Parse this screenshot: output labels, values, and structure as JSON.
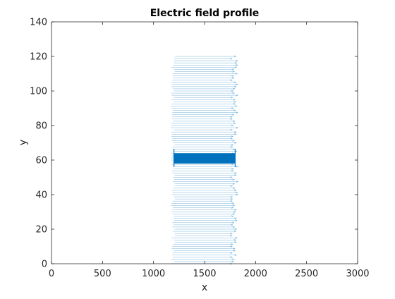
{
  "chart_data": {
    "type": "quiver",
    "title": "Electric field profile",
    "xlabel": "x",
    "ylabel": "y",
    "xlim": [
      0,
      3000
    ],
    "ylim": [
      0,
      140
    ],
    "xticks": [
      0,
      500,
      1000,
      1500,
      2000,
      2500,
      3000
    ],
    "yticks": [
      0,
      20,
      40,
      60,
      80,
      100,
      120,
      140
    ],
    "grid": false,
    "box": true,
    "colors": {
      "series": "#0072BD",
      "axis": "#262626"
    },
    "series": [
      {
        "kind": "quiver_arrows",
        "x_start": 1200,
        "x_end": 1800,
        "x_end_spread": 60,
        "y_from": 0,
        "y_to": 120,
        "y_step": 1.25
      },
      {
        "kind": "dense_band",
        "x_range": [
          1200,
          1800
        ],
        "y_range": [
          58,
          64
        ]
      }
    ]
  }
}
